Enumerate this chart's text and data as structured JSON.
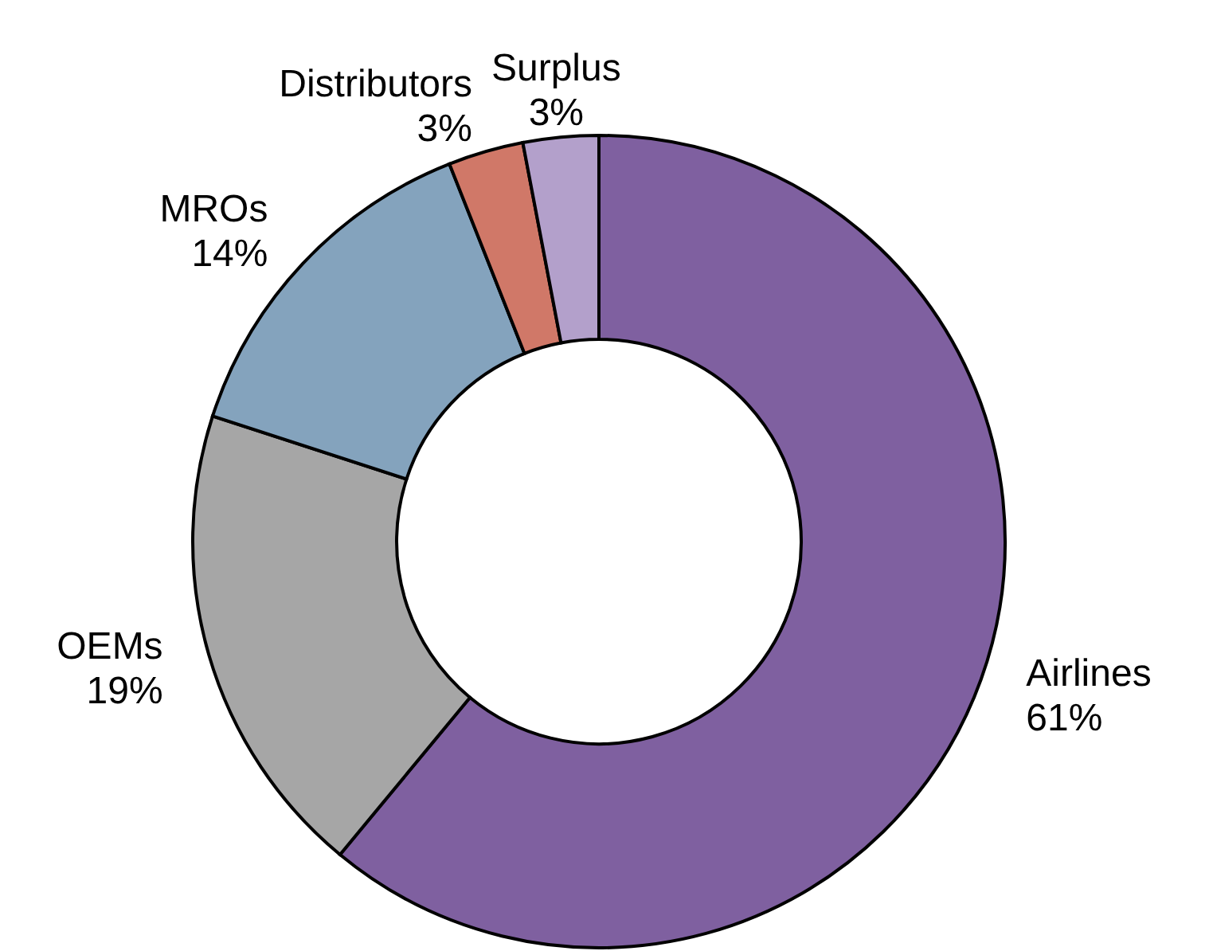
{
  "chart_data": {
    "type": "donut",
    "categories": [
      "Airlines",
      "OEMs",
      "MROs",
      "Distributors",
      "Surplus"
    ],
    "values": [
      61,
      19,
      14,
      3,
      3
    ],
    "value_labels": [
      "61%",
      "19%",
      "14%",
      "3%",
      "3%"
    ],
    "colors": [
      "#7f60a0",
      "#a6a6a6",
      "#84a3bd",
      "#d07868",
      "#b3a0cb"
    ],
    "legend": false
  }
}
